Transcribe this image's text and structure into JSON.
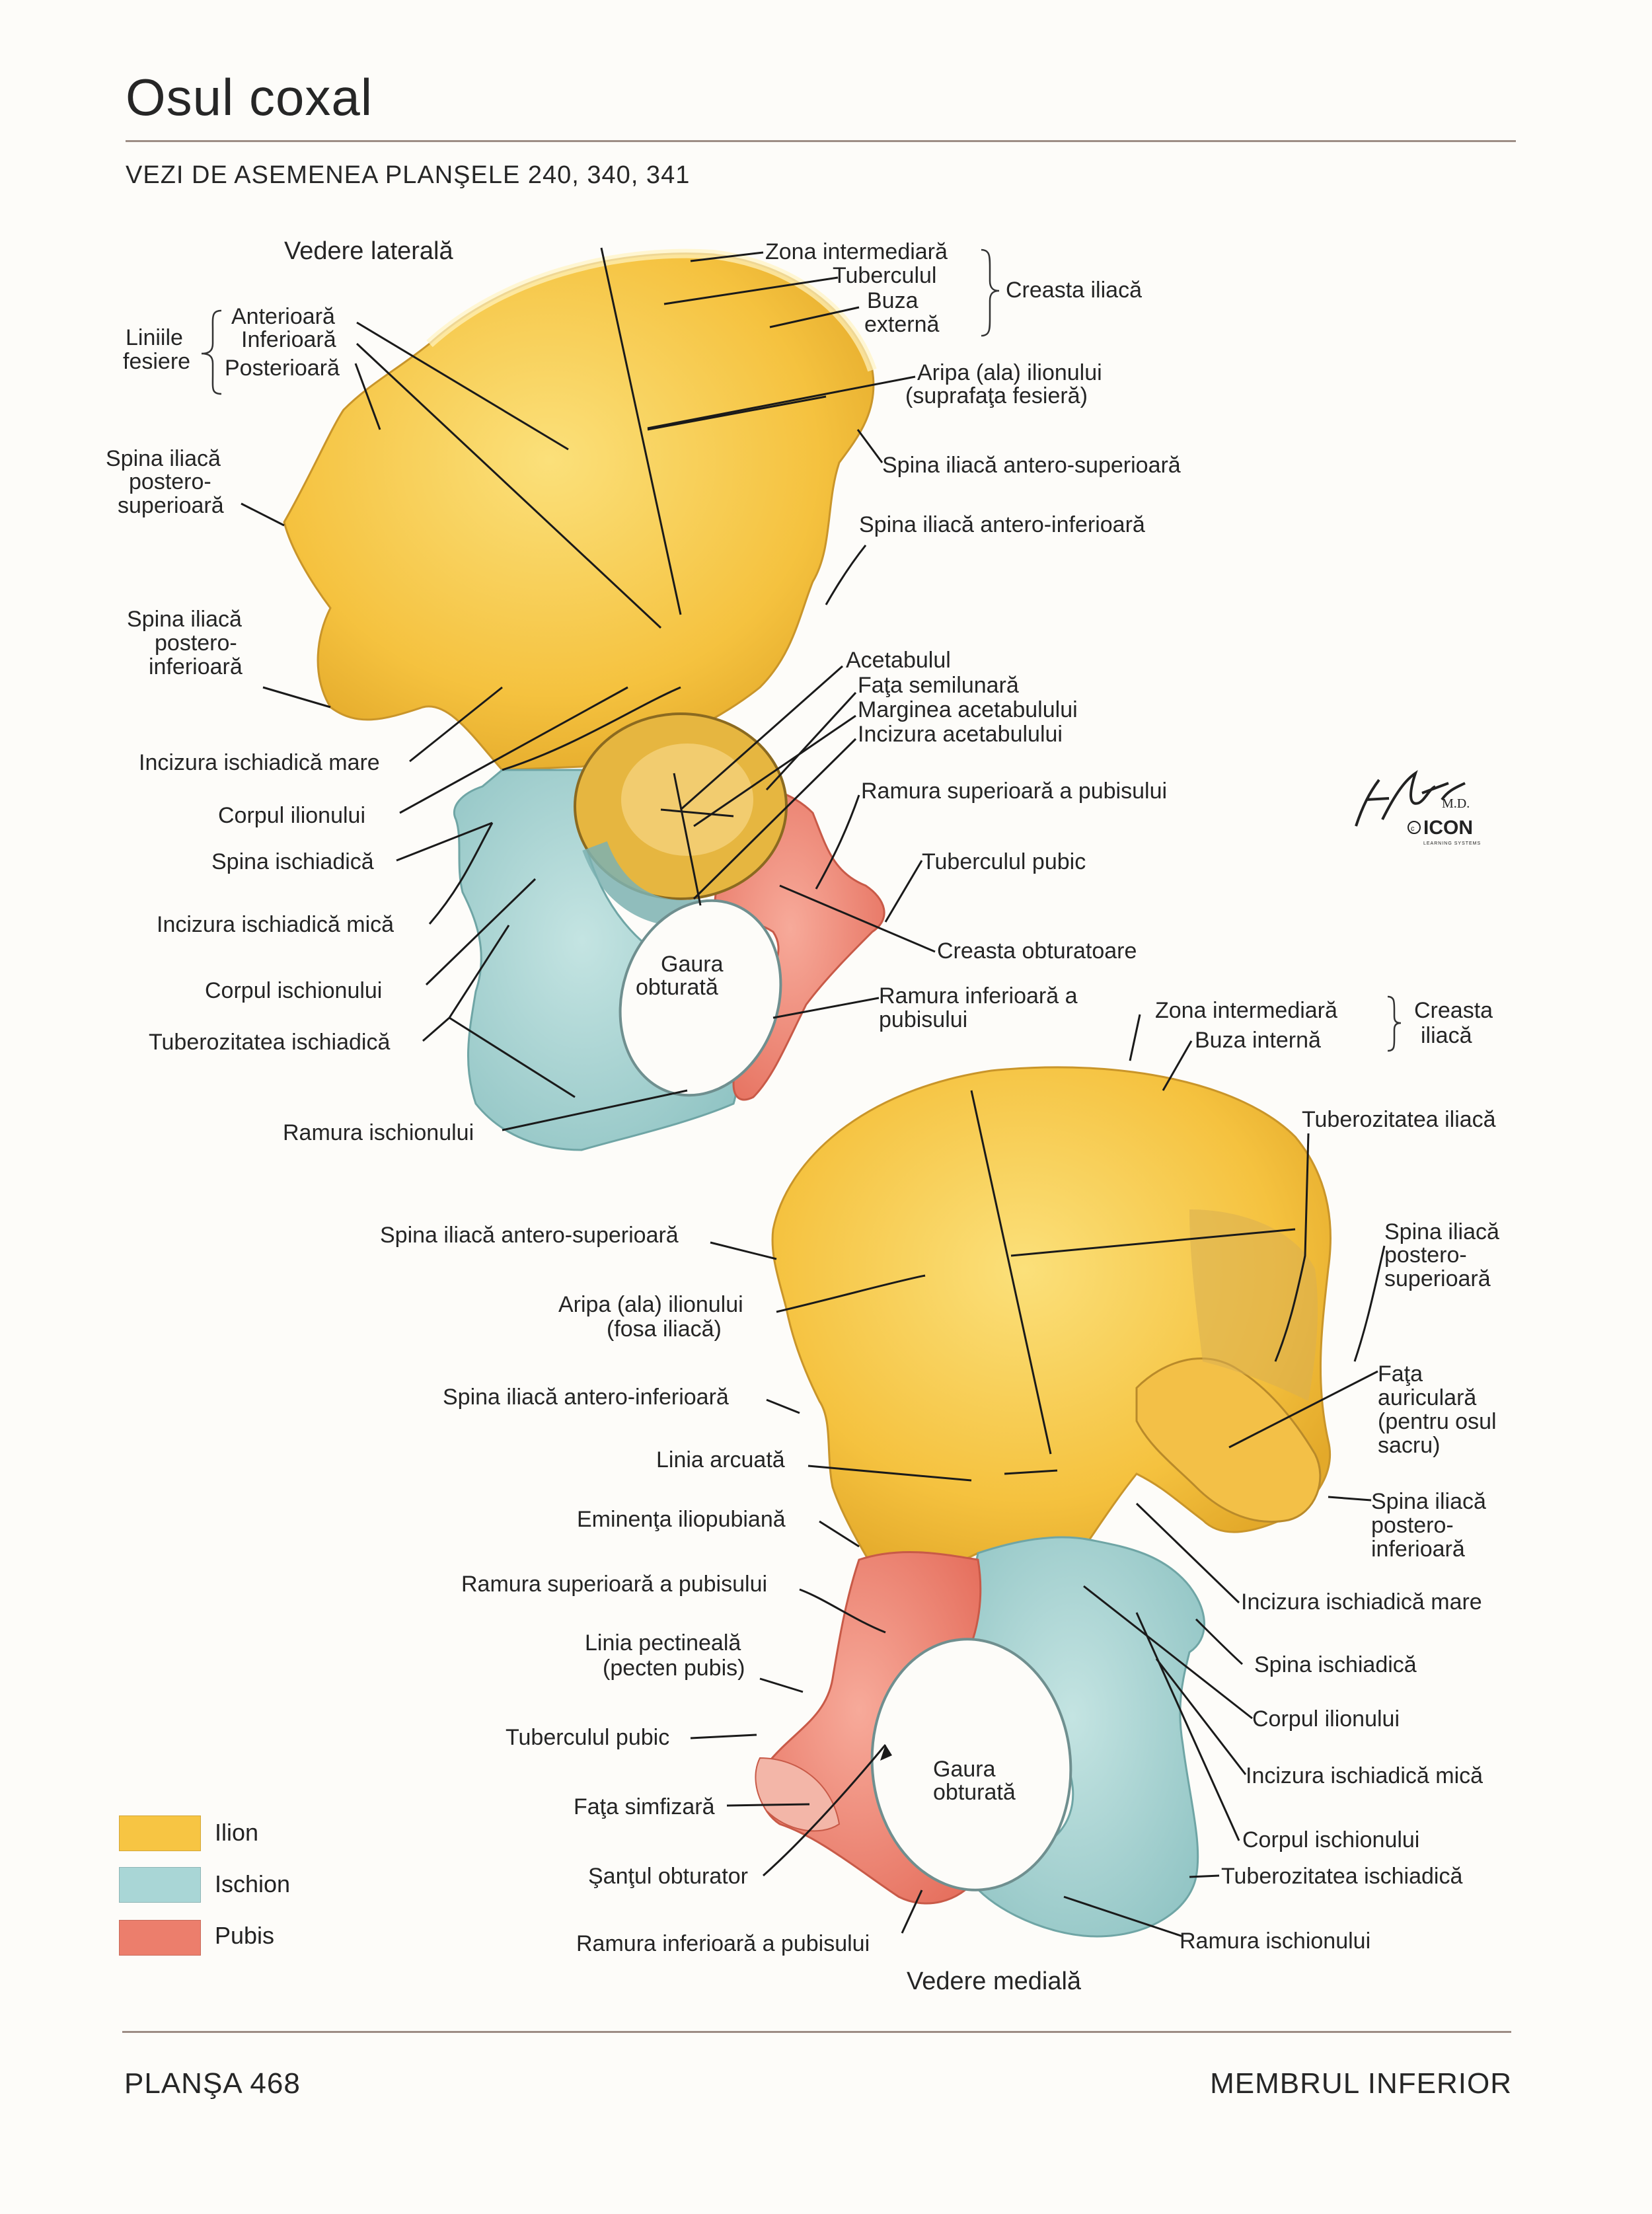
{
  "page": {
    "title": "Osul coxal",
    "subtitle": "VEZI DE ASEMENEA PLANŞELE 240, 340, 341",
    "plate": "PLANŞA 468",
    "section": "MEMBRUL INFERIOR"
  },
  "colors": {
    "ilion": "#f7c543",
    "ischion": "#a9d6d6",
    "pubis": "#ec7e6c",
    "line": "#1a1a1a"
  },
  "lateral_view": {
    "title": "Vedere laterală",
    "gluteal_lines_group": "Liniile fesiere",
    "gluteal_lines_group_l1": "Liniile",
    "gluteal_lines_group_l2": "fesiere",
    "gl_anterior": "Anterioară",
    "gl_inferior": "Inferioară",
    "gl_posterior": "Posterioară",
    "iliac_crest_group": "Creasta iliacă",
    "zone_intermediate": "Zona intermediară",
    "tubercle": "Tuberculul",
    "outer_lip_1": "Buza",
    "outer_lip_2": "externă",
    "wing_1": "Aripa (ala) ilionului",
    "wing_2": "(suprafaţa fesieră)",
    "asis": "Spina iliacă antero-superioară",
    "aiis": "Spina iliacă antero-inferioară",
    "psis_1": "Spina iliacă",
    "psis_2": "postero-",
    "psis_3": "superioară",
    "piis_1": "Spina iliacă",
    "piis_2": "postero-",
    "piis_3": "inferioară",
    "acetabulum": "Acetabulul",
    "lunate": "Faţa semilunară",
    "acet_margin": "Marginea acetabulului",
    "acet_notch": "Incizura acetabulului",
    "greater_notch": "Incizura ischiadică mare",
    "ilium_body": "Corpul ilionului",
    "ischial_spine": "Spina ischiadică",
    "sup_pubic_ramus": "Ramura superioară a pubisului",
    "pubic_tubercle": "Tuberculul pubic",
    "lesser_notch": "Incizura ischiadică mică",
    "obturator_crest": "Creasta obturatoare",
    "obturator_1": "Gaura",
    "obturator_2": "obturată",
    "ischium_body": "Corpul ischionului",
    "inf_pubic_ramus_1": "Ramura inferioară a",
    "inf_pubic_ramus_2": "pubisului",
    "tuberosity": "Tuberozitatea ischiadică",
    "ischial_ramus": "Ramura ischionului"
  },
  "medial_view": {
    "title": "Vedere medială",
    "iliac_crest_group_1": "Creasta",
    "iliac_crest_group_2": "iliacă",
    "zone_intermediate": "Zona intermediară",
    "inner_lip": "Buza internă",
    "iliac_tuberosity": "Tuberozitatea iliacă",
    "asis": "Spina iliacă antero-superioară",
    "psis_1": "Spina iliacă",
    "psis_2": "postero-",
    "psis_3": "superioară",
    "wing_1": "Aripa (ala) ilionului",
    "wing_2": "(fosa iliacă)",
    "auricular_1": "Faţa",
    "auricular_2": "auriculară",
    "auricular_3": "(pentru osul",
    "auricular_4": "sacru)",
    "aiis": "Spina iliacă antero-inferioară",
    "arcuate": "Linia arcuată",
    "piis_1": "Spina iliacă",
    "piis_2": "postero-",
    "piis_3": "inferioară",
    "iliopubic": "Eminenţa iliopubiană",
    "sup_pubic_ramus": "Ramura superioară a pubisului",
    "greater_notch": "Incizura ischiadică mare",
    "pectineal_1": "Linia pectineală",
    "pectineal_2": "(pecten pubis)",
    "ischial_spine": "Spina ischiadică",
    "ilium_body": "Corpul ilionului",
    "pubic_tubercle": "Tuberculul pubic",
    "obturator_1": "Gaura",
    "obturator_2": "obturată",
    "lesser_notch": "Incizura ischiadică mică",
    "symphyseal": "Faţa simfizară",
    "ischium_body": "Corpul ischionului",
    "obturator_groove": "Şanţul obturator",
    "tuberosity": "Tuberozitatea ischiadică",
    "inf_pubic_ramus": "Ramura inferioară a pubisului",
    "ischial_ramus": "Ramura ischionului"
  },
  "legend": [
    {
      "label": "Ilion",
      "color": "#f7c543"
    },
    {
      "label": "Ischion",
      "color": "#a9d6d6"
    },
    {
      "label": "Pubis",
      "color": "#ec7e6c"
    }
  ],
  "signature": {
    "name": "F. Netter M.D.",
    "mark": "ICON",
    "mark_sub": "LEARNING SYSTEMS"
  }
}
